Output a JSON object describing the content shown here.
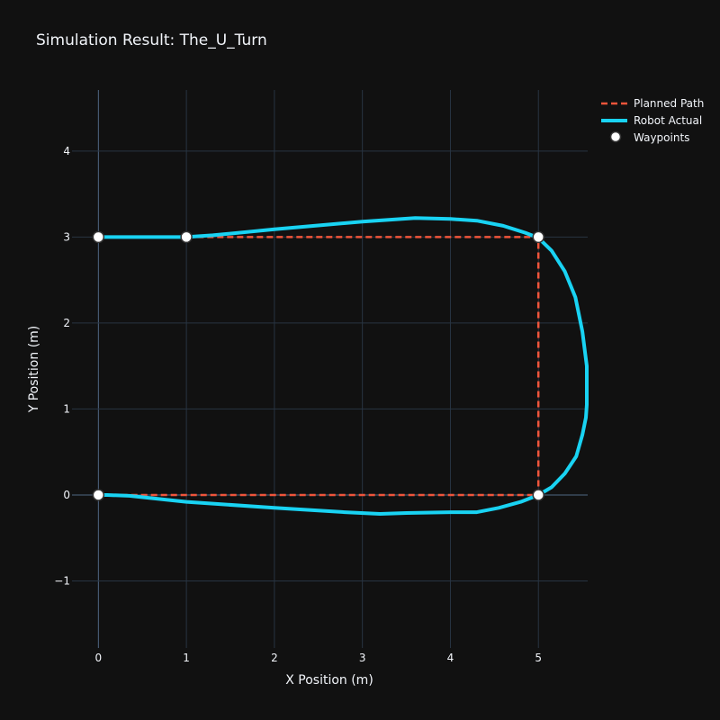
{
  "chart_data": {
    "type": "line",
    "title": "Simulation Result: The_U_Turn",
    "xlabel": "X Position (m)",
    "ylabel": "Y Position (m)",
    "xlim": [
      -0.3,
      5.56
    ],
    "ylim": [
      -1.78,
      4.71
    ],
    "xticks": [
      0,
      1,
      2,
      3,
      4,
      5
    ],
    "yticks": [
      -1,
      0,
      1,
      2,
      3,
      4
    ],
    "xtick_labels": [
      "0",
      "1",
      "2",
      "3",
      "4",
      "5"
    ],
    "ytick_labels": [
      "−1",
      "0",
      "1",
      "2",
      "3",
      "4"
    ],
    "grid": true,
    "legend_position": "top-right",
    "series": [
      {
        "name": "Planned Path",
        "style": "dashed",
        "color": "#ef553b",
        "x": [
          0,
          1,
          5,
          5,
          0
        ],
        "y": [
          3,
          3,
          3,
          0,
          0
        ]
      },
      {
        "name": "Robot Actual",
        "style": "solid",
        "color": "#19d3f3",
        "x": [
          0,
          0.5,
          1.0,
          1.3,
          2.0,
          3.0,
          3.6,
          4.0,
          4.3,
          4.6,
          4.85,
          5.0,
          5.15,
          5.3,
          5.42,
          5.5,
          5.55,
          5.55,
          5.54,
          5.5,
          5.43,
          5.3,
          5.15,
          5.0,
          4.8,
          4.55,
          4.3,
          4.0,
          3.5,
          3.2,
          2.8,
          2.0,
          1.0,
          0.35,
          0.1,
          0
        ],
        "y": [
          3,
          3,
          3,
          3.02,
          3.09,
          3.18,
          3.22,
          3.21,
          3.19,
          3.13,
          3.05,
          2.99,
          2.84,
          2.6,
          2.3,
          1.9,
          1.5,
          1.05,
          0.9,
          0.7,
          0.45,
          0.25,
          0.09,
          0.0,
          -0.08,
          -0.15,
          -0.2,
          -0.2,
          -0.21,
          -0.22,
          -0.2,
          -0.15,
          -0.08,
          -0.01,
          0.0,
          0
        ]
      },
      {
        "name": "Waypoints",
        "style": "markers",
        "color": "#ffffff",
        "x": [
          0,
          1,
          5,
          5,
          0
        ],
        "y": [
          3,
          3,
          3,
          0,
          0
        ]
      }
    ]
  }
}
